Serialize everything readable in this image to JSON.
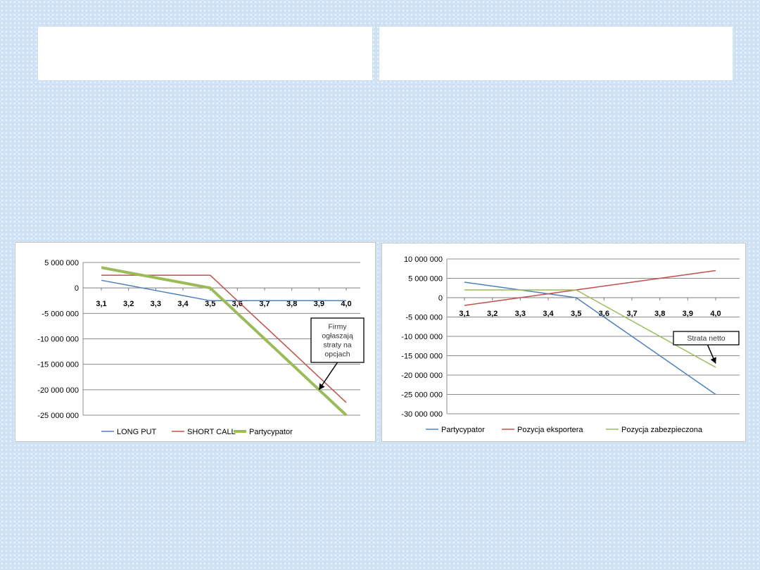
{
  "chart_data": [
    {
      "type": "line",
      "x": [
        3.1,
        3.2,
        3.3,
        3.4,
        3.5,
        3.6,
        3.7,
        3.8,
        3.9,
        4.0
      ],
      "x_tick_labels": [
        "3,1",
        "3,2",
        "3,3",
        "3,4",
        "3,5",
        "3,6",
        "3,7",
        "3,8",
        "3,9",
        "4,0"
      ],
      "ylim": [
        -25000000,
        5000000
      ],
      "y_ticks": [
        5000000,
        0,
        -5000000,
        -10000000,
        -15000000,
        -20000000,
        -25000000
      ],
      "y_tick_labels": [
        "5 000 000",
        "0",
        "-5 000 000",
        "-10 000 000",
        "-15 000 000",
        "-20 000 000",
        "-25 000 000"
      ],
      "grid": "horizontal",
      "legend_position": "bottom",
      "series": [
        {
          "name": "LONG PUT",
          "color": "#4f81bd",
          "width": 1.5,
          "values": [
            1500000,
            500000,
            -500000,
            -1500000,
            -2500000,
            -2500000,
            -2500000,
            -2500000,
            -2500000,
            -2500000
          ]
        },
        {
          "name": "SHORT CALL",
          "color": "#c0504d",
          "width": 1.5,
          "values": [
            2500000,
            2500000,
            2500000,
            2500000,
            2500000,
            -2500000,
            -7500000,
            -12500000,
            -17500000,
            -22500000
          ]
        },
        {
          "name": "Partycypator",
          "color": "#9bbb59",
          "width": 4,
          "values": [
            4000000,
            3000000,
            2000000,
            1000000,
            0,
            -5000000,
            -10000000,
            -15000000,
            -20000000,
            -25000000
          ]
        }
      ],
      "annotation": {
        "lines": [
          "Firmy",
          "ogłaszają",
          "straty na",
          "opcjach"
        ],
        "target_x": 3.9,
        "target_y": -20000000
      }
    },
    {
      "type": "line",
      "x": [
        3.1,
        3.2,
        3.3,
        3.4,
        3.5,
        3.6,
        3.7,
        3.8,
        3.9,
        4.0
      ],
      "x_tick_labels": [
        "3,1",
        "3,2",
        "3,3",
        "3,4",
        "3,5",
        "3,6",
        "3,7",
        "3,8",
        "3,9",
        "4,0"
      ],
      "ylim": [
        -30000000,
        10000000
      ],
      "y_ticks": [
        10000000,
        5000000,
        0,
        -5000000,
        -10000000,
        -15000000,
        -20000000,
        -25000000,
        -30000000
      ],
      "y_tick_labels": [
        "10 000 000",
        "5 000 000",
        "0",
        "-5 000 000",
        "-10 000 000",
        "-15 000 000",
        "-20 000 000",
        "-25 000 000",
        "-30 000 000"
      ],
      "grid": "horizontal",
      "legend_position": "bottom",
      "series": [
        {
          "name": "Partycypator",
          "color": "#4f81bd",
          "width": 1.5,
          "values": [
            4000000,
            3000000,
            2000000,
            1000000,
            0,
            -5000000,
            -10000000,
            -15000000,
            -20000000,
            -25000000
          ]
        },
        {
          "name": "Pozycja eksportera",
          "color": "#c0504d",
          "width": 1.5,
          "values": [
            -2000000,
            -1000000,
            0,
            1000000,
            2000000,
            3000000,
            4000000,
            5000000,
            6000000,
            7000000
          ]
        },
        {
          "name": "Pozycja zabezpieczona",
          "color": "#9bbb59",
          "width": 1.5,
          "values": [
            2000000,
            2000000,
            2000000,
            2000000,
            2000000,
            -2000000,
            -6000000,
            -10000000,
            -14000000,
            -18000000
          ]
        }
      ],
      "annotation": {
        "lines": [
          "Strata netto"
        ],
        "target_x": 4.0,
        "target_y": -17000000
      }
    }
  ]
}
